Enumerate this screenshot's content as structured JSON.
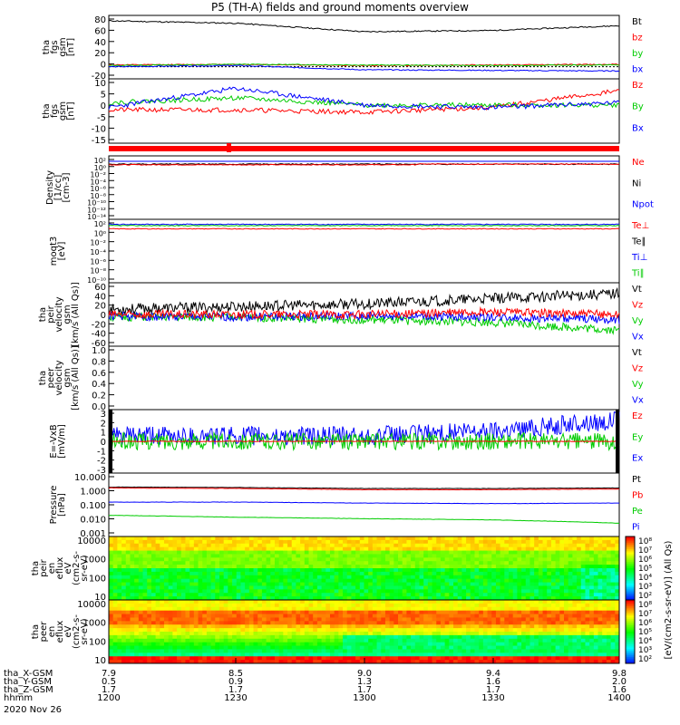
{
  "figure": {
    "title": "P5 (TH-A) fields and ground moments overview",
    "date_label": "2020 Nov 26"
  },
  "axis": {
    "rows": [
      {
        "name": "tha_X-GSM",
        "values": [
          "7.9",
          "8.5",
          "9.0",
          "9.4",
          "9.8"
        ]
      },
      {
        "name": "tha_Y-GSM",
        "values": [
          "0.5",
          "0.9",
          "1.3",
          "1.6",
          "2.0"
        ]
      },
      {
        "name": "tha_Z-GSM",
        "values": [
          "1.7",
          "1.7",
          "1.7",
          "1.7",
          "1.6"
        ]
      },
      {
        "name": "hhmm",
        "values": [
          "1200",
          "1230",
          "1300",
          "1330",
          "1400"
        ]
      }
    ]
  },
  "panels": [
    {
      "id": "fgs_gsm",
      "ylabel": [
        "tha",
        "fgs",
        "gsm",
        "[nT]"
      ],
      "ticks": [
        "80",
        "60",
        "40",
        "20",
        "0",
        "-20"
      ],
      "legend": [
        {
          "t": "Bt",
          "c": "#000000"
        },
        {
          "t": "bz",
          "c": "#ff0000"
        },
        {
          "t": "by",
          "c": "#00cc00"
        },
        {
          "t": "bx",
          "c": "#0000ff"
        }
      ]
    },
    {
      "id": "fgs_dsl",
      "ylabel": [
        "tha",
        "fgs",
        "gsm",
        "[nT]"
      ],
      "ticks": [
        "10",
        "5",
        "0",
        "-5",
        "-10",
        "-15"
      ],
      "legend": [
        {
          "t": "Bz",
          "c": "#ff0000"
        },
        {
          "t": "By",
          "c": "#00cc00"
        },
        {
          "t": "Bx",
          "c": "#0000ff"
        }
      ]
    },
    {
      "id": "flag",
      "ylabel": [],
      "ticks": [],
      "legend": []
    },
    {
      "id": "density",
      "ylabel": [
        "Density",
        "[1/cc]",
        "[cm-3]"
      ],
      "ticks": [
        "10²",
        "10⁰",
        "10⁻²",
        "10⁻⁴",
        "10⁻⁶",
        "10⁻⁸",
        "10⁻¹⁰",
        "10⁻¹²",
        "10⁻¹⁴"
      ],
      "legend": [
        {
          "t": "Ne",
          "c": "#ff0000"
        },
        {
          "t": "Ni",
          "c": "#000000"
        },
        {
          "t": "Npot",
          "c": "#0000ff"
        }
      ]
    },
    {
      "id": "temp",
      "ylabel": [
        "moqt3",
        "[eV]"
      ],
      "ticks": [
        "10²",
        "10⁰",
        "10⁻²",
        "10⁻⁴",
        "10⁻⁶",
        "10⁻⁸",
        "10⁻¹⁰"
      ],
      "legend": [
        {
          "t": "Te⊥",
          "c": "#ff0000"
        },
        {
          "t": "Te∥",
          "c": "#000000"
        },
        {
          "t": "Ti⊥",
          "c": "#0000ff"
        },
        {
          "t": "Ti∥",
          "c": "#00cc00"
        }
      ]
    },
    {
      "id": "peir_vel",
      "ylabel": [
        "tha",
        "peir",
        "velocity",
        "gsm",
        "[km/s (All Qs)]"
      ],
      "ticks": [
        "60",
        "40",
        "20",
        "0",
        "-20",
        "-40",
        "-60"
      ],
      "legend": [
        {
          "t": "Vt",
          "c": "#000000"
        },
        {
          "t": "Vz",
          "c": "#ff0000"
        },
        {
          "t": "Vy",
          "c": "#00cc00"
        },
        {
          "t": "Vx",
          "c": "#0000ff"
        }
      ]
    },
    {
      "id": "peer_vel",
      "ylabel": [
        "tha",
        "peer",
        "velocity",
        "gsm",
        "[km/s (All Qs)]"
      ],
      "ticks": [
        "1.0",
        "0.8",
        "0.6",
        "0.4",
        "0.2",
        "0.0"
      ],
      "legend": [
        {
          "t": "Vt",
          "c": "#000000"
        },
        {
          "t": "Vz",
          "c": "#ff0000"
        },
        {
          "t": "Vy",
          "c": "#00cc00"
        },
        {
          "t": "Vx",
          "c": "#0000ff"
        }
      ]
    },
    {
      "id": "efield",
      "ylabel": [
        "E=-VxB",
        "[mV/m]"
      ],
      "ticks": [
        "3",
        "2",
        "1",
        "0",
        "-1",
        "-2",
        "-3"
      ],
      "legend": [
        {
          "t": "Ez",
          "c": "#ff0000"
        },
        {
          "t": "Ey",
          "c": "#00cc00"
        },
        {
          "t": "Ex",
          "c": "#0000ff"
        }
      ]
    },
    {
      "id": "pressure",
      "ylabel": [
        "Pressure",
        "[nPa]"
      ],
      "ticks": [
        "10.000",
        "1.000",
        "0.100",
        "0.010",
        "0.001"
      ],
      "legend": [
        {
          "t": "Pt",
          "c": "#000000"
        },
        {
          "t": "Pb",
          "c": "#ff0000"
        },
        {
          "t": "Pe",
          "c": "#00cc00"
        },
        {
          "t": "Pi",
          "c": "#0000ff"
        }
      ]
    },
    {
      "id": "peir_en",
      "ylabel": [
        "tha",
        "peir",
        "en",
        "eflux",
        "eV",
        "(cm2-s-",
        "sr-eV)"
      ],
      "ticks": [
        "10000",
        "1000",
        "100",
        "10"
      ],
      "legend": []
    },
    {
      "id": "peer_en",
      "ylabel": [
        "tha",
        "peer",
        "en",
        "eflux",
        "eV",
        "(cm2-s-",
        "sr-eV)"
      ],
      "ticks": [
        "10000",
        "1000",
        "100",
        "10"
      ],
      "legend": []
    }
  ],
  "colorbar": {
    "label": "[eV/(cm2-s-sr-eV)] (All Qs)",
    "ticks_top": [
      "10⁸",
      "10⁷",
      "10⁶",
      "10⁵",
      "10⁴",
      "10³",
      "10²"
    ],
    "ticks_bottom": [
      "10⁸",
      "10⁷",
      "10⁶",
      "10⁵",
      "10⁴",
      "10³",
      "10²"
    ]
  },
  "chart_data": [
    {
      "type": "line",
      "title": "P5 (TH-A) fields and ground moments overview",
      "ylabel": "tha fgs gsm [nT]",
      "ylim": [
        -20,
        85
      ],
      "x": [
        "1200",
        "1230",
        "1300",
        "1330",
        "1400"
      ],
      "series": [
        {
          "name": "Bt",
          "values": [
            76,
            72,
            58,
            60,
            68
          ]
        },
        {
          "name": "bz",
          "values": [
            3,
            4,
            2,
            3,
            4
          ]
        },
        {
          "name": "by",
          "values": [
            2,
            4,
            3,
            2,
            3
          ]
        },
        {
          "name": "bx",
          "values": [
            0,
            2,
            -5,
            -6,
            -7
          ]
        }
      ]
    },
    {
      "type": "line",
      "ylabel": "tha fgs gsm [nT]",
      "ylim": [
        -17,
        10
      ],
      "x": [
        "1200",
        "1230",
        "1300",
        "1330",
        "1400"
      ],
      "series": [
        {
          "name": "Bz",
          "values": [
            -3,
            -3,
            -4,
            -2,
            5
          ]
        },
        {
          "name": "By",
          "values": [
            0,
            2,
            -1,
            -1,
            -1
          ]
        },
        {
          "name": "Bx",
          "values": [
            -2,
            6,
            -1,
            -2,
            0
          ]
        }
      ]
    },
    {
      "type": "line",
      "ylabel": "Density [cm-3]",
      "x": [
        "1200",
        "1230",
        "1300",
        "1330",
        "1400"
      ],
      "series": [
        {
          "name": "Ne",
          "values": [
            1,
            1,
            1,
            1,
            1
          ]
        },
        {
          "name": "Ni",
          "values": [
            1,
            1,
            1,
            1,
            1
          ]
        },
        {
          "name": "Npot",
          "values": [
            10,
            10,
            10,
            10,
            10
          ]
        }
      ]
    },
    {
      "type": "line",
      "ylabel": "moqt3 [eV]",
      "x": [
        "1200",
        "1230",
        "1300",
        "1330",
        "1400"
      ],
      "series": [
        {
          "name": "Te⊥",
          "values": [
            100,
            100,
            100,
            100,
            100
          ]
        },
        {
          "name": "Ti⊥",
          "values": [
            300,
            300,
            300,
            300,
            300
          ]
        }
      ]
    },
    {
      "type": "line",
      "ylabel": "tha peir velocity gsm [km/s (All Qs)]",
      "ylim": [
        -60,
        60
      ],
      "x": [
        "1200",
        "1230",
        "1300",
        "1330",
        "1400"
      ],
      "series": [
        {
          "name": "Vt",
          "values": [
            10,
            15,
            20,
            30,
            40
          ]
        },
        {
          "name": "Vz",
          "values": [
            0,
            0,
            0,
            5,
            0
          ]
        },
        {
          "name": "Vy",
          "values": [
            -5,
            -5,
            -10,
            -15,
            -30
          ]
        },
        {
          "name": "Vx",
          "values": [
            -3,
            -5,
            -3,
            -5,
            -10
          ]
        }
      ]
    },
    {
      "type": "line",
      "ylabel": "E=-VxB [mV/m]",
      "ylim": [
        -3,
        3
      ],
      "x": [
        "1200",
        "1230",
        "1300",
        "1330",
        "1400"
      ],
      "series": [
        {
          "name": "Ez",
          "values": [
            0,
            0,
            0,
            0,
            0
          ]
        },
        {
          "name": "Ey",
          "values": [
            0,
            0,
            0,
            0,
            0
          ]
        },
        {
          "name": "Ex",
          "values": [
            0.5,
            0.5,
            0.5,
            1,
            2
          ]
        }
      ]
    },
    {
      "type": "line",
      "ylabel": "Pressure [nPa]",
      "x": [
        "1200",
        "1230",
        "1300",
        "1330",
        "1400"
      ],
      "series": [
        {
          "name": "Pt",
          "values": [
            1.5,
            1.4,
            1.2,
            1.2,
            1.3
          ]
        },
        {
          "name": "Pb",
          "values": [
            1.3,
            1.2,
            1.0,
            1.0,
            1.1
          ]
        },
        {
          "name": "Pe",
          "values": [
            0.02,
            0.015,
            0.012,
            0.01,
            0.006
          ]
        },
        {
          "name": "Pi",
          "values": [
            0.15,
            0.15,
            0.13,
            0.12,
            0.13
          ]
        }
      ]
    },
    {
      "type": "heatmap",
      "ylabel": "tha peir en eflux eV (cm2-s-sr-eV)",
      "x": [
        "1200",
        "1230",
        "1300",
        "1330",
        "1400"
      ],
      "y": [
        "10",
        "100",
        "1000",
        "10000"
      ]
    },
    {
      "type": "heatmap",
      "ylabel": "tha peer en eflux eV (cm2-s-sr-eV)",
      "x": [
        "1200",
        "1230",
        "1300",
        "1330",
        "1400"
      ],
      "y": [
        "10",
        "100",
        "1000",
        "10000"
      ]
    }
  ]
}
